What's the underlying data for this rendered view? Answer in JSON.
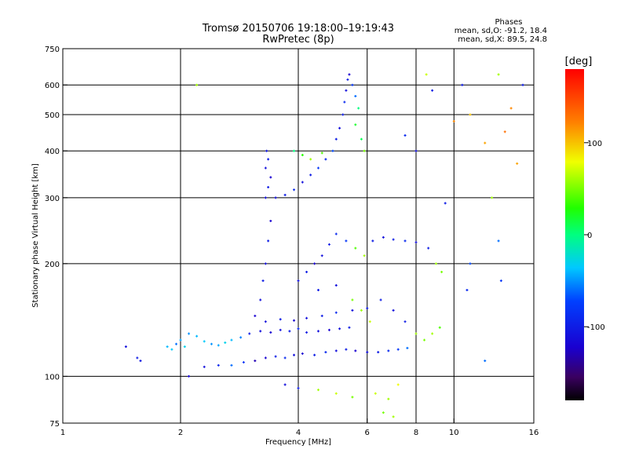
{
  "chart_data": {
    "type": "scatter",
    "title": "Tromsø 20150706 19:18:00–19:19:43",
    "subtitle": "RwPretec (8p)",
    "xlabel": "Frequency [MHz]",
    "ylabel": "Stationary phase Virtual Height [km]",
    "x_scale": "log",
    "y_scale": "log",
    "xlim": [
      1,
      16
    ],
    "ylim": [
      75,
      750
    ],
    "grid": true,
    "x_ticks": [
      1,
      2,
      4,
      6,
      8,
      10,
      16
    ],
    "x_tick_labels": [
      "1",
      "2",
      "4",
      "6",
      "8",
      "10",
      "16"
    ],
    "y_ticks": [
      75,
      100,
      200,
      300,
      400,
      500,
      600,
      750
    ],
    "y_tick_labels": [
      "75",
      "100",
      "200",
      "300",
      "400",
      "500",
      "600",
      "750"
    ],
    "stats": {
      "heading": "Phases",
      "line_o": "mean, sd,O: -91.2, 18.4",
      "line_x": "mean, sd,X: 89.5, 24.8"
    },
    "colorbar": {
      "label": "[deg]",
      "range": [
        -180,
        180
      ],
      "ticks": [
        100,
        0,
        -100
      ],
      "tick_labels": [
        "100",
        "0",
        "-100"
      ],
      "colormap": "rainbow"
    },
    "point_sample_note": "",
    "points": [
      [
        1.45,
        120,
        -110
      ],
      [
        1.55,
        112,
        -100
      ],
      [
        1.58,
        110,
        -105
      ],
      [
        1.85,
        120,
        -40
      ],
      [
        1.9,
        118,
        -35
      ],
      [
        1.95,
        122,
        -60
      ],
      [
        2.0,
        125,
        -45
      ],
      [
        2.05,
        120,
        -30
      ],
      [
        2.1,
        130,
        -50
      ],
      [
        2.2,
        128,
        -40
      ],
      [
        2.3,
        124,
        -35
      ],
      [
        2.4,
        122,
        -50
      ],
      [
        2.5,
        121,
        -45
      ],
      [
        2.6,
        123,
        -30
      ],
      [
        2.7,
        125,
        -40
      ],
      [
        2.85,
        127,
        -55
      ],
      [
        2.1,
        100,
        -120
      ],
      [
        2.3,
        106,
        -110
      ],
      [
        2.5,
        107,
        -90
      ],
      [
        2.7,
        107,
        -60
      ],
      [
        2.9,
        109,
        -80
      ],
      [
        3.1,
        110,
        -130
      ],
      [
        3.3,
        112,
        -120
      ],
      [
        3.5,
        113,
        -100
      ],
      [
        3.7,
        112,
        -90
      ],
      [
        3.9,
        114,
        -110
      ],
      [
        4.1,
        115,
        -120
      ],
      [
        4.4,
        114,
        -100
      ],
      [
        4.7,
        116,
        -90
      ],
      [
        5.0,
        117,
        -110
      ],
      [
        5.3,
        118,
        -100
      ],
      [
        5.6,
        117,
        -120
      ],
      [
        6.0,
        116,
        -110
      ],
      [
        6.4,
        116,
        -100
      ],
      [
        6.8,
        117,
        -90
      ],
      [
        7.2,
        118,
        -80
      ],
      [
        7.6,
        119,
        -60
      ],
      [
        3.0,
        130,
        -100
      ],
      [
        3.2,
        132,
        -110
      ],
      [
        3.4,
        131,
        -120
      ],
      [
        3.6,
        133,
        -110
      ],
      [
        3.8,
        132,
        -100
      ],
      [
        4.0,
        134,
        -90
      ],
      [
        4.2,
        131,
        -100
      ],
      [
        4.5,
        132,
        -110
      ],
      [
        4.8,
        133,
        -120
      ],
      [
        5.1,
        134,
        -110
      ],
      [
        5.4,
        135,
        -100
      ],
      [
        3.3,
        140,
        -110
      ],
      [
        3.6,
        142,
        -100
      ],
      [
        3.9,
        141,
        -120
      ],
      [
        4.2,
        143,
        -110
      ],
      [
        4.6,
        145,
        -100
      ],
      [
        5.0,
        148,
        -90
      ],
      [
        5.5,
        150,
        -110
      ],
      [
        6.0,
        152,
        -100
      ],
      [
        3.1,
        145,
        -120
      ],
      [
        3.2,
        160,
        -110
      ],
      [
        3.25,
        180,
        -100
      ],
      [
        3.3,
        200,
        -110
      ],
      [
        3.35,
        230,
        -100
      ],
      [
        3.4,
        260,
        -120
      ],
      [
        3.3,
        300,
        -110
      ],
      [
        3.35,
        320,
        -100
      ],
      [
        3.4,
        340,
        -120
      ],
      [
        3.3,
        360,
        -110
      ],
      [
        3.35,
        380,
        -100
      ],
      [
        3.32,
        400,
        -105
      ],
      [
        3.5,
        300,
        -110
      ],
      [
        3.7,
        305,
        -100
      ],
      [
        3.9,
        315,
        -90
      ],
      [
        4.1,
        330,
        -110
      ],
      [
        4.3,
        345,
        -100
      ],
      [
        4.5,
        360,
        -80
      ],
      [
        4.7,
        380,
        -90
      ],
      [
        4.9,
        400,
        -70
      ],
      [
        5.0,
        430,
        -100
      ],
      [
        5.1,
        460,
        -110
      ],
      [
        5.2,
        500,
        -100
      ],
      [
        5.25,
        540,
        -90
      ],
      [
        5.3,
        580,
        -110
      ],
      [
        5.35,
        620,
        -100
      ],
      [
        5.4,
        640,
        -120
      ],
      [
        5.5,
        600,
        -80
      ],
      [
        5.6,
        560,
        -60
      ],
      [
        3.9,
        400,
        0
      ],
      [
        4.1,
        390,
        30
      ],
      [
        4.3,
        380,
        60
      ],
      [
        4.6,
        395,
        40
      ],
      [
        5.6,
        470,
        20
      ],
      [
        5.8,
        430,
        10
      ],
      [
        5.9,
        400,
        50
      ],
      [
        5.7,
        520,
        0
      ],
      [
        4.0,
        180,
        -110
      ],
      [
        4.2,
        190,
        -100
      ],
      [
        4.4,
        200,
        -120
      ],
      [
        4.6,
        210,
        -110
      ],
      [
        4.8,
        225,
        -100
      ],
      [
        5.0,
        240,
        -90
      ],
      [
        5.3,
        230,
        -80
      ],
      [
        5.6,
        220,
        40
      ],
      [
        5.9,
        210,
        60
      ],
      [
        6.2,
        230,
        -100
      ],
      [
        6.6,
        235,
        -110
      ],
      [
        7.0,
        232,
        -100
      ],
      [
        7.5,
        230,
        -90
      ],
      [
        8.0,
        228,
        -110
      ],
      [
        8.6,
        220,
        -100
      ],
      [
        4.5,
        170,
        -100
      ],
      [
        5.0,
        175,
        -110
      ],
      [
        5.5,
        160,
        50
      ],
      [
        5.8,
        150,
        60
      ],
      [
        6.1,
        140,
        70
      ],
      [
        6.5,
        160,
        -100
      ],
      [
        7.0,
        150,
        -110
      ],
      [
        7.5,
        140,
        -100
      ],
      [
        8.0,
        130,
        60
      ],
      [
        8.4,
        125,
        50
      ],
      [
        8.8,
        130,
        60
      ],
      [
        9.2,
        135,
        40
      ],
      [
        9.0,
        200,
        60
      ],
      [
        9.3,
        190,
        50
      ],
      [
        3.7,
        95,
        -110
      ],
      [
        4.0,
        93,
        -100
      ],
      [
        4.5,
        92,
        60
      ],
      [
        5.0,
        90,
        70
      ],
      [
        5.5,
        88,
        50
      ],
      [
        6.3,
        90,
        70
      ],
      [
        6.8,
        87,
        60
      ],
      [
        7.2,
        95,
        80
      ],
      [
        6.6,
        80,
        50
      ],
      [
        7.0,
        78,
        60
      ],
      [
        10.0,
        480,
        120
      ],
      [
        10.5,
        600,
        -100
      ],
      [
        11.0,
        500,
        100
      ],
      [
        12.0,
        420,
        110
      ],
      [
        13.0,
        640,
        60
      ],
      [
        13.5,
        450,
        130
      ],
      [
        14.0,
        520,
        120
      ],
      [
        14.5,
        370,
        110
      ],
      [
        15.0,
        600,
        -100
      ],
      [
        12.5,
        300,
        60
      ],
      [
        13.0,
        230,
        -60
      ],
      [
        13.2,
        180,
        -80
      ],
      [
        12.0,
        110,
        -60
      ],
      [
        11.0,
        200,
        -70
      ],
      [
        10.8,
        170,
        -90
      ],
      [
        9.5,
        290,
        -100
      ],
      [
        8.5,
        640,
        70
      ],
      [
        8.8,
        580,
        -100
      ],
      [
        7.5,
        440,
        -90
      ],
      [
        8.0,
        400,
        -110
      ],
      [
        2.2,
        600,
        60
      ]
    ]
  }
}
